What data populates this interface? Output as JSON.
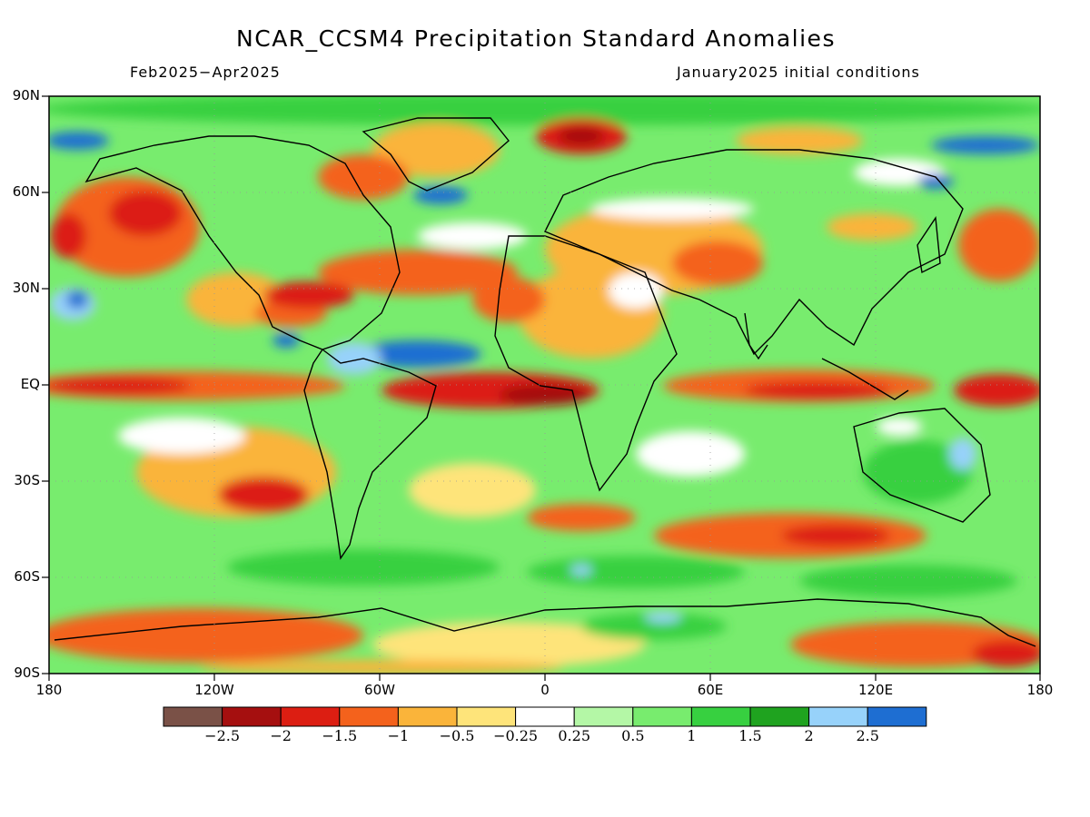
{
  "title": "NCAR_CCSM4 Precipitation Standard Anomalies",
  "period": "Feb2025−Apr2025",
  "init": "January2025 initial conditions",
  "lat_labels": [
    "90N",
    "60N",
    "30N",
    "EQ",
    "30S",
    "60S",
    "90S"
  ],
  "lon_labels": [
    "180",
    "120W",
    "60W",
    "0",
    "60E",
    "120E",
    "180"
  ],
  "colorbar": {
    "colors": [
      "#7a5147",
      "#a50f0f",
      "#dc1e12",
      "#f4621c",
      "#fab43a",
      "#fee47a",
      "#ffffff",
      "#b4f7a6",
      "#78ec6e",
      "#37d040",
      "#1fa31f",
      "#97d2fa",
      "#1e6ed2"
    ],
    "labels": [
      "−2.5",
      "−2",
      "−1.5",
      "−1",
      "−0.5",
      "−0.25",
      "0.25",
      "0.5",
      "1",
      "1.5",
      "2",
      "2.5"
    ]
  }
}
